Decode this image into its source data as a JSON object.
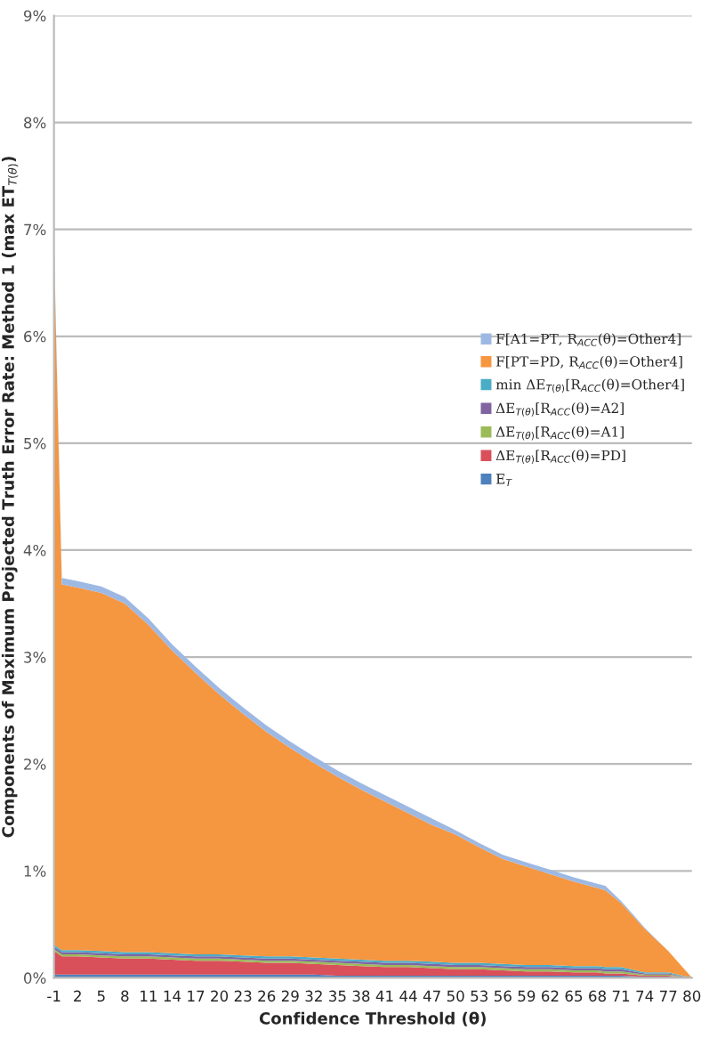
{
  "chart_data": {
    "type": "area",
    "stacked": true,
    "xlabel": "Confidence Threshold (θ)",
    "ylabel": "Components of Maximum Projected Truth Error Rate: Method 1 (max ET$_{T(θ)}$)",
    "x": [
      -1,
      0,
      2,
      5,
      8,
      11,
      14,
      17,
      20,
      23,
      26,
      29,
      32,
      35,
      38,
      41,
      44,
      47,
      50,
      53,
      56,
      59,
      62,
      65,
      68,
      69,
      71,
      74,
      77,
      80
    ],
    "xlim": [
      -1,
      80
    ],
    "xticks": [
      -1,
      2,
      5,
      8,
      11,
      14,
      17,
      20,
      23,
      26,
      29,
      32,
      35,
      38,
      41,
      44,
      47,
      50,
      53,
      56,
      59,
      62,
      65,
      68,
      71,
      74,
      77,
      80
    ],
    "ylim": [
      0,
      9
    ],
    "yticks": [
      {
        "value": 0,
        "label": "0%"
      },
      {
        "value": 1,
        "label": "1%"
      },
      {
        "value": 2,
        "label": "2%"
      },
      {
        "value": 3,
        "label": "3%"
      },
      {
        "value": 4,
        "label": "4%"
      },
      {
        "value": 5,
        "label": "5%"
      },
      {
        "value": 6,
        "label": "6%"
      },
      {
        "value": 7,
        "label": "7%"
      },
      {
        "value": 8,
        "label": "8%"
      },
      {
        "value": 9,
        "label": "9%"
      }
    ],
    "grid": "y",
    "legend": "right",
    "series": [
      {
        "name": "E$_{T}$",
        "color": "#4f81bd",
        "values": [
          0.03,
          0.03,
          0.03,
          0.03,
          0.03,
          0.03,
          0.03,
          0.03,
          0.03,
          0.03,
          0.03,
          0.03,
          0.03,
          0.02,
          0.02,
          0.02,
          0.02,
          0.02,
          0.02,
          0.02,
          0.02,
          0.02,
          0.02,
          0.02,
          0.02,
          0.02,
          0.02,
          0.01,
          0.01,
          0
        ]
      },
      {
        "name": "ΔE$_{T(θ)}$[R$_{ACC}$(θ)=PD]",
        "color": "#d9505a",
        "values": [
          0.22,
          0.17,
          0.17,
          0.16,
          0.15,
          0.15,
          0.14,
          0.13,
          0.13,
          0.12,
          0.11,
          0.11,
          0.1,
          0.1,
          0.09,
          0.08,
          0.08,
          0.07,
          0.06,
          0.06,
          0.05,
          0.04,
          0.04,
          0.03,
          0.03,
          0.02,
          0.02,
          0.01,
          0.01,
          0
        ]
      },
      {
        "name": "ΔE$_{T(θ)}$[R$_{ACC}$(θ)=A1]",
        "color": "#9bbb59",
        "values": [
          0.02,
          0.02,
          0.02,
          0.02,
          0.02,
          0.02,
          0.02,
          0.02,
          0.02,
          0.02,
          0.02,
          0.02,
          0.02,
          0.02,
          0.02,
          0.02,
          0.02,
          0.02,
          0.02,
          0.02,
          0.02,
          0.02,
          0.02,
          0.02,
          0.02,
          0.02,
          0.02,
          0.01,
          0.01,
          0
        ]
      },
      {
        "name": "ΔE$_{T(θ)}$[R$_{ACC}$(θ)=A2]",
        "color": "#8064a2",
        "values": [
          0.02,
          0.02,
          0.02,
          0.02,
          0.02,
          0.02,
          0.02,
          0.02,
          0.02,
          0.02,
          0.02,
          0.02,
          0.02,
          0.02,
          0.02,
          0.02,
          0.02,
          0.02,
          0.02,
          0.02,
          0.02,
          0.02,
          0.02,
          0.02,
          0.02,
          0.02,
          0.02,
          0.01,
          0.01,
          0
        ]
      },
      {
        "name": "min ΔE$_{T(θ)}$[R$_{ACC}$(θ)=Other4]",
        "color": "#4bacc6",
        "values": [
          0.02,
          0.02,
          0.02,
          0.02,
          0.02,
          0.02,
          0.02,
          0.02,
          0.02,
          0.02,
          0.02,
          0.02,
          0.02,
          0.02,
          0.02,
          0.02,
          0.02,
          0.02,
          0.02,
          0.02,
          0.02,
          0.02,
          0.02,
          0.02,
          0.02,
          0.02,
          0.02,
          0.01,
          0.01,
          0
        ]
      },
      {
        "name": "F[PT=PD, R$_{ACC}$(θ)=Other4]",
        "color": "#f59640",
        "values": [
          6.53,
          3.42,
          3.39,
          3.35,
          3.26,
          3.06,
          2.83,
          2.63,
          2.43,
          2.26,
          2.1,
          1.95,
          1.82,
          1.7,
          1.59,
          1.49,
          1.38,
          1.28,
          1.2,
          1.08,
          0.98,
          0.92,
          0.85,
          0.79,
          0.73,
          0.72,
          0.6,
          0.41,
          0.2,
          0
        ]
      },
      {
        "name": "F[A1=PT, R$_{ACC}$(θ)=Other4]",
        "color": "#9db9e3",
        "values": [
          0.05,
          0.06,
          0.06,
          0.06,
          0.06,
          0.06,
          0.06,
          0.06,
          0.06,
          0.06,
          0.06,
          0.06,
          0.06,
          0.06,
          0.06,
          0.06,
          0.06,
          0.06,
          0.04,
          0.04,
          0.04,
          0.04,
          0.04,
          0.04,
          0.04,
          0.04,
          0.02,
          0.01,
          0,
          0
        ]
      }
    ]
  }
}
